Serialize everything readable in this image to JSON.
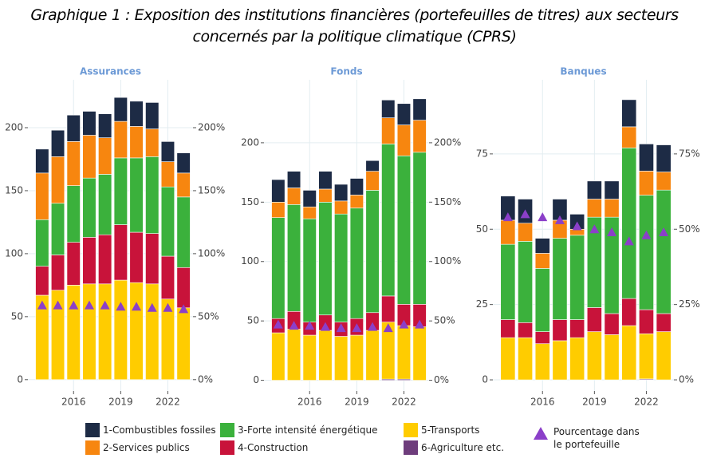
{
  "title": "Graphique 1 : Exposition des institutions financières (portefeuilles de titres) aux secteurs concernés par la politique climatique (CPRS)",
  "chart_data": [
    {
      "type": "bar",
      "stacked": true,
      "title": "Assurances",
      "categories": [
        null,
        null,
        "2016",
        null,
        null,
        "2019",
        null,
        null,
        "2022",
        null
      ],
      "ylim": [
        -9,
        238
      ],
      "yticks": [
        0,
        50,
        100,
        150,
        200
      ],
      "y2lim": [
        -9,
        238
      ],
      "y2ticks": [
        {
          "value": 0,
          "label": "0%"
        },
        {
          "value": 50,
          "label": "50%"
        },
        {
          "value": 100,
          "label": "100%"
        },
        {
          "value": 150,
          "label": "150%"
        },
        {
          "value": 200,
          "label": "200%"
        }
      ],
      "grid": true,
      "series": [
        {
          "name": "1-Combustibles fossiles",
          "color": "#1d2b45",
          "values": [
            19,
            21,
            21,
            19,
            19,
            19,
            20,
            21,
            16,
            16
          ]
        },
        {
          "name": "2-Services publics",
          "color": "#f7860f",
          "values": [
            37,
            37,
            35,
            34,
            29,
            29,
            25,
            22,
            20,
            19
          ]
        },
        {
          "name": "3-Forte intensité énergétique",
          "color": "#3bb13c",
          "values": [
            37,
            41,
            45,
            47,
            48,
            53,
            59,
            61,
            55,
            56
          ]
        },
        {
          "name": "4-Construction",
          "color": "#c8133a",
          "values": [
            23,
            28,
            34,
            37,
            39,
            44,
            40,
            40,
            34,
            32
          ]
        },
        {
          "name": "5-Transports",
          "color": "#ffcc00",
          "values": [
            67,
            71,
            75,
            76,
            76,
            79,
            77,
            76,
            64,
            57
          ]
        },
        {
          "name": "6-Agriculture etc.",
          "color": "#6e3d7c",
          "values": [
            0,
            0,
            0,
            0,
            0,
            0,
            0,
            0,
            0,
            0
          ]
        },
        {
          "name": "Pourcentage dans le portefeuille",
          "color": "#8b3fc9",
          "axis": "y2",
          "marker": "triangle",
          "values": [
            59,
            59,
            59,
            59,
            59,
            58,
            58,
            57,
            57,
            56
          ]
        }
      ]
    },
    {
      "type": "bar",
      "stacked": true,
      "title": "Fonds",
      "categories": [
        null,
        null,
        "2016",
        null,
        null,
        "2019",
        null,
        null,
        "2022",
        null
      ],
      "ylim": [
        -9,
        253
      ],
      "yticks": [
        0,
        50,
        100,
        150,
        200
      ],
      "y2lim": [
        -9,
        253
      ],
      "y2ticks": [
        {
          "value": 0,
          "label": "0%"
        },
        {
          "value": 50,
          "label": "50%"
        },
        {
          "value": 100,
          "label": "100%"
        },
        {
          "value": 150,
          "label": "150%"
        },
        {
          "value": 200,
          "label": "200%"
        }
      ],
      "grid": true,
      "series": [
        {
          "values": [
            19,
            14,
            14,
            15,
            14,
            14,
            9,
            15,
            18,
            18
          ]
        },
        {
          "values": [
            13,
            14,
            10,
            11,
            11,
            11,
            16,
            22,
            26,
            27
          ]
        },
        {
          "values": [
            85,
            90,
            87,
            95,
            91,
            93,
            103,
            128,
            125,
            128
          ]
        },
        {
          "values": [
            12,
            15,
            11,
            13,
            12,
            14,
            15,
            22,
            18,
            19
          ]
        },
        {
          "values": [
            40,
            43,
            38,
            42,
            37,
            38,
            42,
            48,
            45,
            45
          ]
        },
        {
          "values": [
            0,
            0,
            0,
            0,
            0,
            0,
            0,
            1,
            1,
            0
          ]
        },
        {
          "axis": "y2",
          "marker": "triangle",
          "values": [
            47,
            46,
            46,
            45,
            44,
            44,
            45,
            44,
            47,
            47
          ]
        }
      ]
    },
    {
      "type": "bar",
      "stacked": true,
      "title": "Banques",
      "categories": [
        null,
        null,
        "2016",
        null,
        null,
        "2019",
        null,
        null,
        "2022",
        null
      ],
      "ylim": [
        -3.7,
        99.6
      ],
      "yticks": [
        0,
        25,
        50,
        75
      ],
      "y2lim": [
        -3.7,
        99.6
      ],
      "y2ticks": [
        {
          "value": 0,
          "label": "0%"
        },
        {
          "value": 25,
          "label": "25%"
        },
        {
          "value": 50,
          "label": "50%"
        },
        {
          "value": 75,
          "label": "75%"
        }
      ],
      "grid": true,
      "series": [
        {
          "values": [
            8,
            8,
            5,
            7,
            5,
            6,
            6,
            9,
            9,
            9
          ]
        },
        {
          "values": [
            8,
            6,
            5,
            6,
            2,
            6,
            6,
            7,
            8,
            6
          ]
        },
        {
          "values": [
            25,
            27,
            21,
            27,
            28,
            30,
            32,
            50,
            38,
            41
          ]
        },
        {
          "values": [
            6,
            5,
            4,
            7,
            6,
            8,
            7,
            9,
            8,
            6
          ]
        },
        {
          "values": [
            14,
            14,
            12,
            13,
            14,
            16,
            15,
            18,
            15,
            16
          ]
        },
        {
          "values": [
            0,
            0,
            0,
            0,
            0,
            0,
            0,
            0,
            0.3,
            0
          ]
        },
        {
          "axis": "y2",
          "marker": "triangle",
          "values": [
            54,
            55,
            54,
            53,
            51,
            50,
            49,
            46,
            48,
            49
          ]
        }
      ]
    }
  ]
}
